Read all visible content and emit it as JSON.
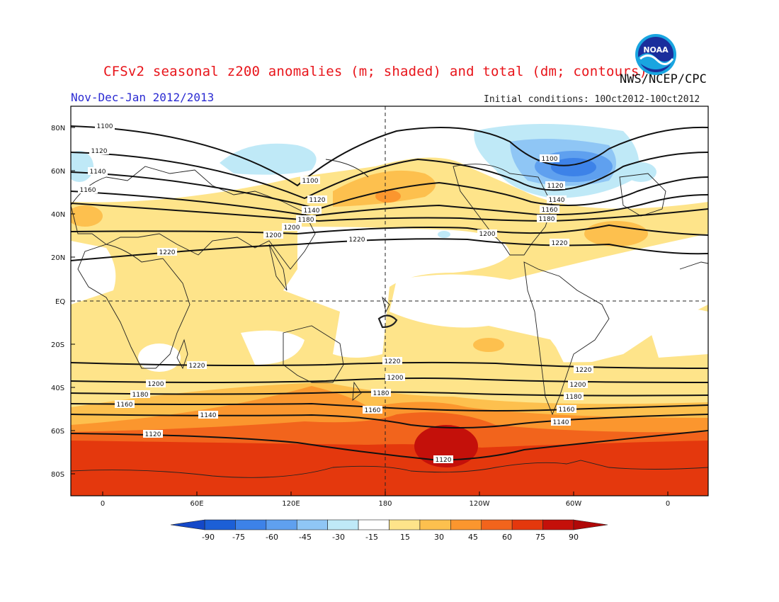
{
  "header": {
    "title": "CFSv2 seasonal z200 anomalies (m; shaded) and total (dm; contours)",
    "season": "Nov-Dec-Jan 2012/2013",
    "initial_conditions": "Initial conditions: 10Oct2012-10Oct2012",
    "agency": "NWS/NCEP/CPC",
    "logo_text": "NOAA"
  },
  "map": {
    "lat_ticks": [
      "80N",
      "60N",
      "40N",
      "20N",
      "EQ",
      "20S",
      "40S",
      "60S",
      "80S"
    ],
    "lon_ticks": [
      "0",
      "60E",
      "120E",
      "180",
      "120W",
      "60W",
      "0"
    ],
    "contour_levels": [
      {
        "value": "1100"
      },
      {
        "value": "1120"
      },
      {
        "value": "1140"
      },
      {
        "value": "1160"
      },
      {
        "value": "1180"
      },
      {
        "value": "1200"
      },
      {
        "value": "1220"
      },
      {
        "value": "1220"
      },
      {
        "value": "1200"
      },
      {
        "value": "1180"
      },
      {
        "value": "1160"
      },
      {
        "value": "1140"
      },
      {
        "value": "1120"
      }
    ]
  },
  "colorbar": {
    "labels": [
      "-90",
      "-75",
      "-60",
      "-45",
      "-30",
      "-15",
      "15",
      "30",
      "45",
      "60",
      "75",
      "90"
    ],
    "colors": [
      "#1c5fd6",
      "#3d82e8",
      "#5fa0ef",
      "#8fc6f5",
      "#bfe9f7",
      "#ffffff",
      "#fee48a",
      "#fdc04e",
      "#fb962e",
      "#f2641c",
      "#e4380d",
      "#c4100a"
    ],
    "end_left_color": "#1448c8",
    "end_right_color": "#b00808"
  }
}
